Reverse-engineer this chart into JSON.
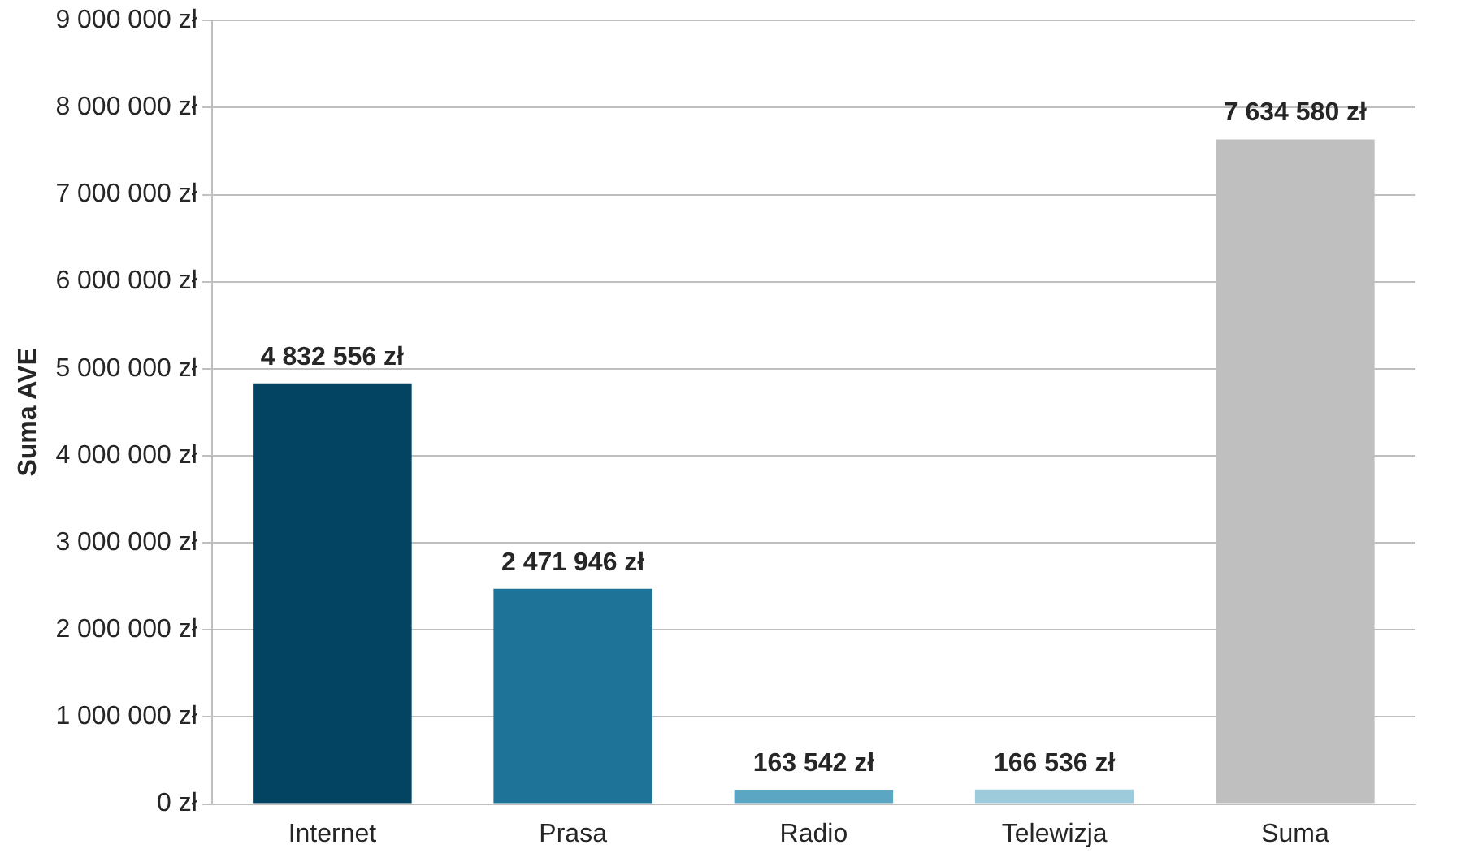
{
  "chart_data": {
    "type": "bar",
    "ylabel": "Suma AVE",
    "categories": [
      "Internet",
      "Prasa",
      "Radio",
      "Telewizja",
      "Suma"
    ],
    "values": [
      4832556,
      2471946,
      163542,
      166536,
      7634580
    ],
    "colors": [
      "#034463",
      "#1e7398",
      "#5ba6c3",
      "#9ecbdb",
      "#bfbfbf"
    ],
    "value_labels": [
      "4 832 556 zł",
      "2 471 946 zł",
      "163 542 zł",
      "166 536 zł",
      "7 634 580 zł"
    ],
    "ylim": [
      0,
      9000000
    ],
    "yticks": [
      {
        "value": 0,
        "label": "0 zł"
      },
      {
        "value": 1000000,
        "label": "1 000 000 zł"
      },
      {
        "value": 2000000,
        "label": "2 000 000 zł"
      },
      {
        "value": 3000000,
        "label": "3 000 000 zł"
      },
      {
        "value": 4000000,
        "label": "4 000 000 zł"
      },
      {
        "value": 5000000,
        "label": "5 000 000 zł"
      },
      {
        "value": 6000000,
        "label": "6 000 000 zł"
      },
      {
        "value": 7000000,
        "label": "7 000 000 zł"
      },
      {
        "value": 8000000,
        "label": "8 000 000 zł"
      },
      {
        "value": 9000000,
        "label": "9 000 000 zł"
      }
    ],
    "grid": "y",
    "legend": false
  }
}
